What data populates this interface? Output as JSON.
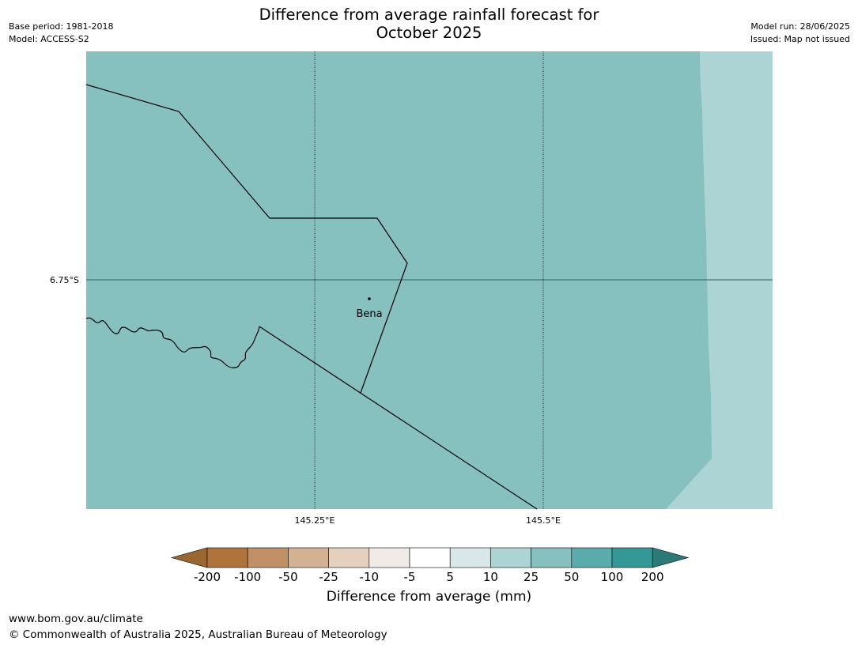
{
  "title": {
    "line1": "Difference from average rainfall forecast for",
    "line2": "October 2025"
  },
  "meta": {
    "base_period": "Base period: 1981-2018",
    "model": "Model: ACCESS-S2",
    "model_run": "Model run: 28/06/2025",
    "issued": "Issued: Map not issued"
  },
  "map": {
    "lat_labels": [
      "6.75°S"
    ],
    "lon_labels": [
      "145.25°E",
      "145.5°E"
    ],
    "places": [
      {
        "name": "Bena"
      }
    ],
    "colors": {
      "main_fill": "#86c1c0",
      "east_fill": "#add4d4",
      "boundary": "#000000"
    }
  },
  "colorbar": {
    "label": "Difference from average (mm)",
    "ticks": [
      "-200",
      "-100",
      "-50",
      "-25",
      "-10",
      "-5",
      "5",
      "10",
      "25",
      "50",
      "100",
      "200"
    ],
    "colors": [
      "#9b6731",
      "#ae743c",
      "#c09067",
      "#d3b293",
      "#e4d0bf",
      "#f0ebe7",
      "#ffffff",
      "#d8e8e8",
      "#add4d4",
      "#86c1c0",
      "#5aacac",
      "#339896",
      "#2c7a78"
    ]
  },
  "footer": {
    "url": "www.bom.gov.au/climate",
    "copyright": "© Commonwealth of Australia 2025, Australian Bureau of Meteorology"
  }
}
